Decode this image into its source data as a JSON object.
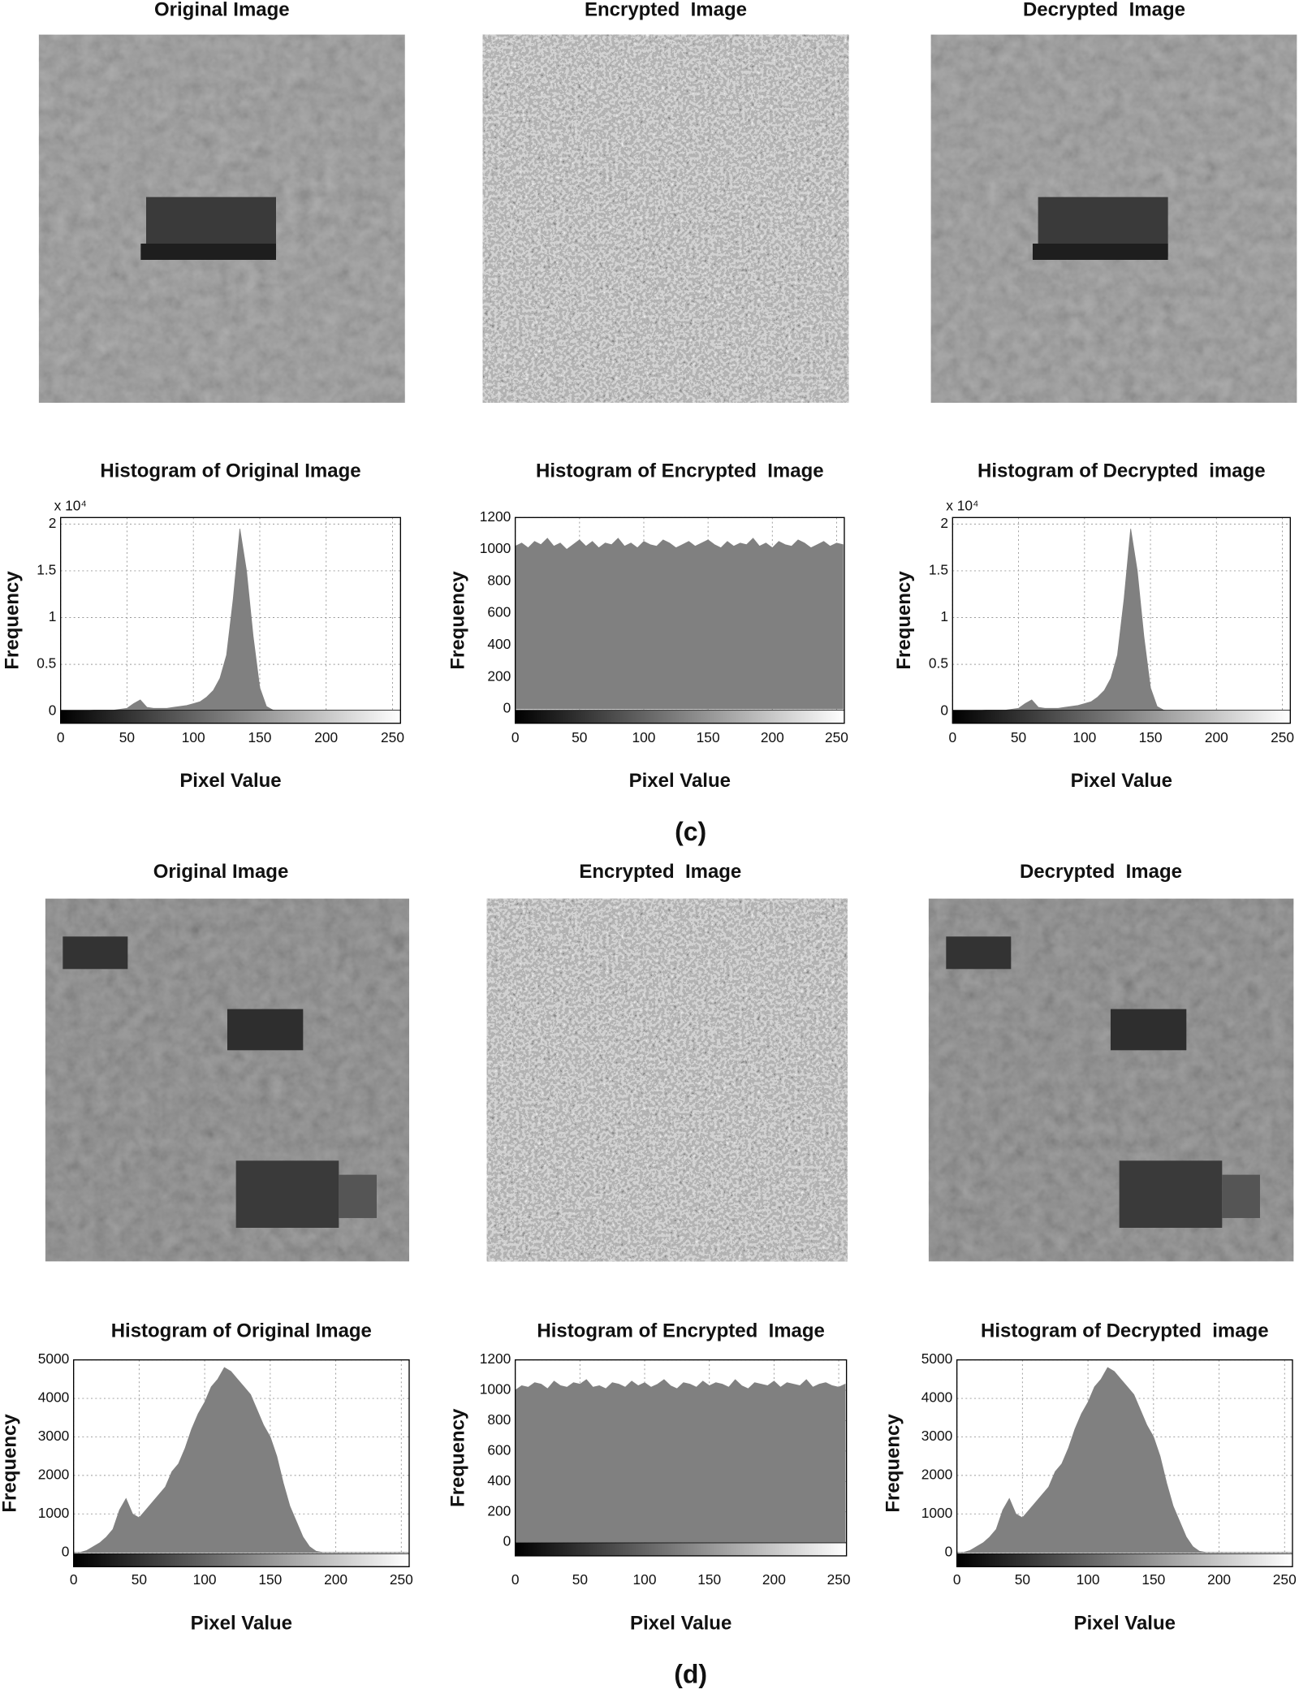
{
  "chart_data": [
    {
      "type": "area",
      "title": "Histogram of Original Image",
      "xlabel": "Pixel Value",
      "ylabel": "Frequency",
      "y_scale_label": "x 10⁴",
      "color": "#808080",
      "grid": true,
      "x": [
        0,
        5,
        10,
        15,
        20,
        25,
        30,
        35,
        40,
        45,
        50,
        55,
        60,
        65,
        70,
        75,
        80,
        85,
        90,
        95,
        100,
        105,
        110,
        115,
        120,
        125,
        130,
        135,
        140,
        145,
        150,
        155,
        160,
        165,
        170,
        175,
        180,
        185,
        190,
        195,
        200,
        205,
        210,
        215,
        220,
        225,
        230,
        235,
        240,
        245,
        250,
        255
      ],
      "values": [
        0.005,
        0.005,
        0.005,
        0.005,
        0.005,
        0.01,
        0.01,
        0.01,
        0.01,
        0.02,
        0.03,
        0.08,
        0.12,
        0.04,
        0.03,
        0.03,
        0.03,
        0.04,
        0.05,
        0.06,
        0.08,
        0.1,
        0.15,
        0.22,
        0.35,
        0.6,
        1.2,
        1.95,
        1.5,
        0.8,
        0.25,
        0.05,
        0.01,
        0,
        0,
        0,
        0,
        0,
        0,
        0,
        0,
        0,
        0,
        0,
        0,
        0,
        0,
        0,
        0,
        0,
        0,
        0
      ],
      "xlim": [
        0,
        256
      ],
      "xticks": [
        0,
        50,
        100,
        150,
        200,
        250
      ],
      "ylim": [
        -0.13,
        2.07
      ],
      "yticks": [
        0,
        0.5,
        1,
        1.5,
        2
      ]
    },
    {
      "type": "area",
      "title": "Histogram of Encrypted  Image",
      "xlabel": "Pixel Value",
      "ylabel": "Frequency",
      "color": "#808080",
      "grid": true,
      "x": [
        0,
        5,
        10,
        15,
        20,
        25,
        30,
        35,
        40,
        45,
        50,
        55,
        60,
        65,
        70,
        75,
        80,
        85,
        90,
        95,
        100,
        105,
        110,
        115,
        120,
        125,
        130,
        135,
        140,
        145,
        150,
        155,
        160,
        165,
        170,
        175,
        180,
        185,
        190,
        195,
        200,
        205,
        210,
        215,
        220,
        225,
        230,
        235,
        240,
        245,
        250,
        255
      ],
      "values": [
        1020,
        1040,
        1010,
        1050,
        1030,
        1070,
        1020,
        1040,
        1000,
        1030,
        1060,
        1020,
        1050,
        1010,
        1040,
        1030,
        1070,
        1020,
        1040,
        1010,
        1050,
        1030,
        1020,
        1060,
        1040,
        1010,
        1030,
        1050,
        1020,
        1040,
        1060,
        1030,
        1010,
        1050,
        1020,
        1040,
        1030,
        1070,
        1020,
        1040,
        1010,
        1050,
        1030,
        1020,
        1060,
        1040,
        1010,
        1030,
        1050,
        1020,
        1040,
        1030
      ],
      "xlim": [
        0,
        256
      ],
      "xticks": [
        0,
        50,
        100,
        150,
        200,
        250
      ],
      "ylim": [
        -90,
        1200
      ],
      "yticks": [
        0,
        200,
        400,
        600,
        800,
        1000,
        1200
      ]
    },
    {
      "type": "area",
      "title": "Histogram of Decrypted  image",
      "xlabel": "Pixel Value",
      "ylabel": "Frequency",
      "y_scale_label": "x 10⁴",
      "color": "#808080",
      "grid": true,
      "x": [
        0,
        5,
        10,
        15,
        20,
        25,
        30,
        35,
        40,
        45,
        50,
        55,
        60,
        65,
        70,
        75,
        80,
        85,
        90,
        95,
        100,
        105,
        110,
        115,
        120,
        125,
        130,
        135,
        140,
        145,
        150,
        155,
        160,
        165,
        170,
        175,
        180,
        185,
        190,
        195,
        200,
        205,
        210,
        215,
        220,
        225,
        230,
        235,
        240,
        245,
        250,
        255
      ],
      "values": [
        0.005,
        0.005,
        0.005,
        0.005,
        0.005,
        0.01,
        0.01,
        0.01,
        0.01,
        0.02,
        0.03,
        0.08,
        0.12,
        0.04,
        0.03,
        0.03,
        0.03,
        0.04,
        0.05,
        0.06,
        0.08,
        0.1,
        0.15,
        0.22,
        0.35,
        0.6,
        1.2,
        1.95,
        1.5,
        0.8,
        0.25,
        0.05,
        0.01,
        0,
        0,
        0,
        0,
        0,
        0,
        0,
        0,
        0,
        0,
        0,
        0,
        0,
        0,
        0,
        0,
        0,
        0,
        0
      ],
      "xlim": [
        0,
        256
      ],
      "xticks": [
        0,
        50,
        100,
        150,
        200,
        250
      ],
      "ylim": [
        -0.13,
        2.07
      ],
      "yticks": [
        0,
        0.5,
        1,
        1.5,
        2
      ]
    },
    {
      "type": "area",
      "title": "Histogram of Original Image",
      "xlabel": "Pixel Value",
      "ylabel": "Frequency",
      "color": "#808080",
      "grid": true,
      "x": [
        0,
        5,
        10,
        15,
        20,
        25,
        30,
        35,
        40,
        45,
        50,
        55,
        60,
        65,
        70,
        75,
        80,
        85,
        90,
        95,
        100,
        105,
        110,
        115,
        120,
        125,
        130,
        135,
        140,
        145,
        150,
        155,
        160,
        165,
        170,
        175,
        180,
        185,
        190,
        195,
        200,
        205,
        210,
        215,
        220,
        225,
        230,
        235,
        240,
        245,
        250,
        255
      ],
      "values": [
        0,
        0,
        50,
        150,
        250,
        400,
        600,
        1100,
        1400,
        1000,
        900,
        1100,
        1300,
        1500,
        1700,
        2100,
        2300,
        2700,
        3200,
        3600,
        3900,
        4300,
        4500,
        4800,
        4700,
        4500,
        4300,
        4100,
        3700,
        3300,
        3000,
        2500,
        1800,
        1200,
        800,
        400,
        150,
        30,
        0,
        0,
        0,
        0,
        0,
        0,
        0,
        0,
        0,
        0,
        0,
        0,
        0,
        0
      ],
      "xlim": [
        0,
        256
      ],
      "xticks": [
        0,
        50,
        100,
        150,
        200,
        250
      ],
      "ylim": [
        -370,
        5000
      ],
      "yticks": [
        0,
        1000,
        2000,
        3000,
        4000,
        5000
      ]
    },
    {
      "type": "area",
      "title": "Histogram of Encrypted  Image",
      "xlabel": "Pixel Value",
      "ylabel": "Frequency",
      "color": "#808080",
      "grid": true,
      "x": [
        0,
        5,
        10,
        15,
        20,
        25,
        30,
        35,
        40,
        45,
        50,
        55,
        60,
        65,
        70,
        75,
        80,
        85,
        90,
        95,
        100,
        105,
        110,
        115,
        120,
        125,
        130,
        135,
        140,
        145,
        150,
        155,
        160,
        165,
        170,
        175,
        180,
        185,
        190,
        195,
        200,
        205,
        210,
        215,
        220,
        225,
        230,
        235,
        240,
        245,
        250,
        255
      ],
      "values": [
        1000,
        1030,
        1020,
        1050,
        1040,
        1010,
        1060,
        1030,
        1020,
        1050,
        1040,
        1070,
        1020,
        1030,
        1010,
        1050,
        1040,
        1020,
        1060,
        1030,
        1050,
        1020,
        1040,
        1070,
        1030,
        1010,
        1050,
        1040,
        1020,
        1060,
        1030,
        1050,
        1040,
        1020,
        1070,
        1030,
        1010,
        1050,
        1040,
        1030,
        1060,
        1020,
        1050,
        1040,
        1030,
        1070,
        1020,
        1040,
        1050,
        1030,
        1020,
        1040
      ],
      "xlim": [
        0,
        256
      ],
      "xticks": [
        0,
        50,
        100,
        150,
        200,
        250
      ],
      "ylim": [
        -90,
        1200
      ],
      "yticks": [
        0,
        200,
        400,
        600,
        800,
        1000,
        1200
      ]
    },
    {
      "type": "area",
      "title": "Histogram of Decrypted  image",
      "xlabel": "Pixel Value",
      "ylabel": "Frequency",
      "color": "#808080",
      "grid": true,
      "x": [
        0,
        5,
        10,
        15,
        20,
        25,
        30,
        35,
        40,
        45,
        50,
        55,
        60,
        65,
        70,
        75,
        80,
        85,
        90,
        95,
        100,
        105,
        110,
        115,
        120,
        125,
        130,
        135,
        140,
        145,
        150,
        155,
        160,
        165,
        170,
        175,
        180,
        185,
        190,
        195,
        200,
        205,
        210,
        215,
        220,
        225,
        230,
        235,
        240,
        245,
        250,
        255
      ],
      "values": [
        0,
        0,
        50,
        150,
        250,
        400,
        600,
        1100,
        1400,
        1000,
        900,
        1100,
        1300,
        1500,
        1700,
        2100,
        2300,
        2700,
        3200,
        3600,
        3900,
        4300,
        4500,
        4800,
        4700,
        4500,
        4300,
        4100,
        3700,
        3300,
        3000,
        2500,
        1800,
        1200,
        800,
        400,
        150,
        30,
        0,
        0,
        0,
        0,
        0,
        0,
        0,
        0,
        0,
        0,
        0,
        0,
        0,
        0
      ],
      "xlim": [
        0,
        256
      ],
      "xticks": [
        0,
        50,
        100,
        150,
        200,
        250
      ],
      "ylim": [
        -370,
        5000
      ],
      "yticks": [
        0,
        1000,
        2000,
        3000,
        4000,
        5000
      ]
    }
  ],
  "panels": [
    {
      "label": "(c)",
      "image_titles": [
        "Original Image",
        "Encrypted  Image",
        "Decrypted  Image"
      ]
    },
    {
      "label": "(d)",
      "image_titles": [
        "Original Image",
        "Encrypted  Image",
        "Decrypted  Image"
      ]
    }
  ]
}
